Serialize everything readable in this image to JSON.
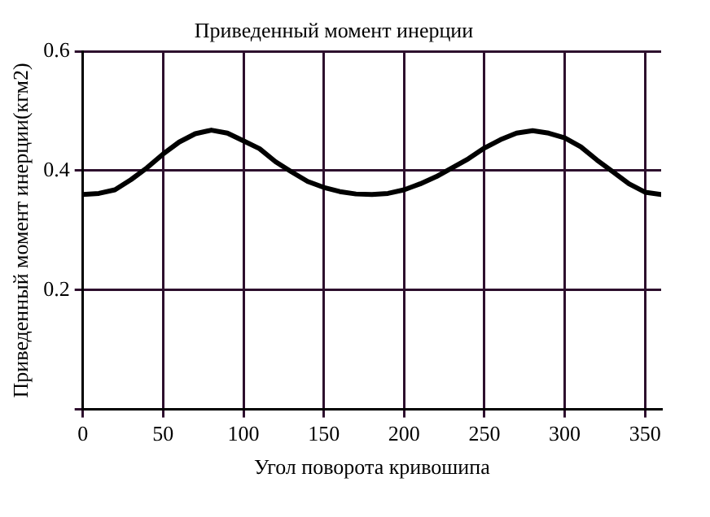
{
  "chart_data": {
    "type": "line",
    "title": "Приведенный момент инерции",
    "xlabel": "Угол поворота кривошипа",
    "ylabel": "Приведенный момент инерции(кгм2)",
    "x": [
      0,
      10,
      20,
      30,
      40,
      50,
      60,
      70,
      80,
      90,
      100,
      110,
      120,
      130,
      140,
      150,
      160,
      170,
      180,
      190,
      200,
      210,
      220,
      230,
      240,
      250,
      260,
      270,
      280,
      290,
      300,
      310,
      320,
      330,
      340,
      350,
      360
    ],
    "series": [
      {
        "color": "#000000",
        "values": [
          0.36,
          0.362,
          0.368,
          0.385,
          0.405,
          0.428,
          0.448,
          0.462,
          0.468,
          0.463,
          0.45,
          0.437,
          0.415,
          0.398,
          0.382,
          0.372,
          0.365,
          0.361,
          0.36,
          0.362,
          0.368,
          0.378,
          0.39,
          0.405,
          0.42,
          0.438,
          0.452,
          0.463,
          0.467,
          0.463,
          0.455,
          0.44,
          0.418,
          0.398,
          0.378,
          0.364,
          0.36
        ]
      }
    ],
    "xlim": [
      0,
      360
    ],
    "xticks": [
      0,
      50,
      100,
      150,
      200,
      250,
      300,
      350
    ],
    "ylim": [
      0,
      0.6
    ],
    "yticks": [
      {
        "value": 0,
        "label": null
      },
      0.2,
      0.4,
      0.6
    ],
    "grid": true,
    "legend": false,
    "marker": "none",
    "line_style": "solid"
  }
}
